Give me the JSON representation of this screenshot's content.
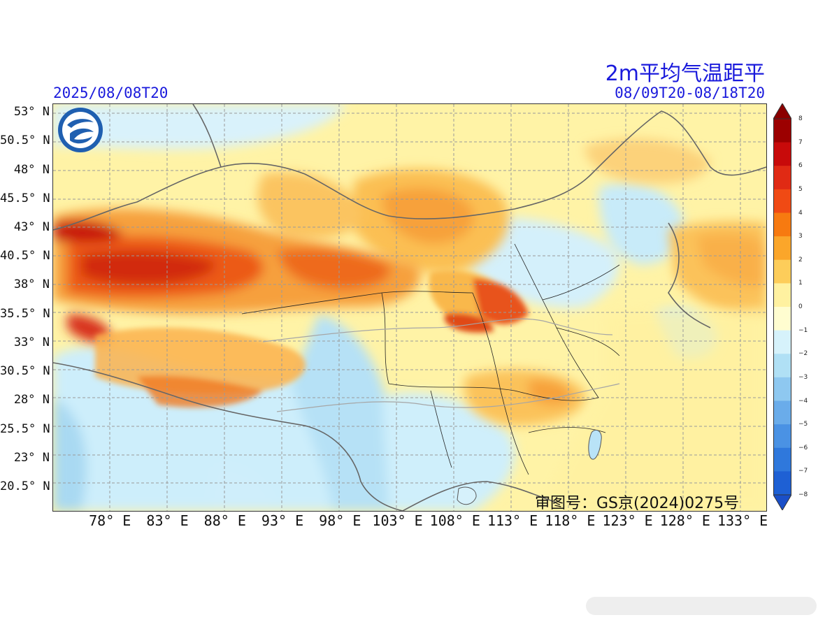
{
  "header": {
    "title": "2m平均气温距平",
    "init_time": "2025/08/08T20",
    "valid_range": "08/09T20-08/18T20"
  },
  "map": {
    "lat_labels": [
      "53° N",
      "50.5° N",
      "48° N",
      "45.5° N",
      "43° N",
      "40.5° N",
      "38° N",
      "35.5° N",
      "33° N",
      "30.5° N",
      "28° N",
      "25.5° N",
      "23° N",
      "20.5° N"
    ],
    "lat_values": [
      53,
      50.5,
      48,
      45.5,
      43,
      40.5,
      38,
      35.5,
      33,
      30.5,
      28,
      25.5,
      23,
      20.5
    ],
    "lon_labels": [
      "78° E",
      "83° E",
      "88° E",
      "93° E",
      "98° E",
      "103° E",
      "108° E",
      "113° E",
      "118° E",
      "123° E",
      "128° E",
      "133° E"
    ],
    "lon_values": [
      78,
      83,
      88,
      93,
      98,
      103,
      108,
      113,
      118,
      123,
      128,
      133
    ],
    "lon_range": [
      73,
      135
    ],
    "lat_range": [
      18.5,
      53.8
    ],
    "approval_number": "审图号：GS京(2024)0275号",
    "logo_icon": "weather-logo-icon"
  },
  "colorbar": {
    "ticks": [
      "8",
      "7",
      "6",
      "5",
      "4",
      "3",
      "2",
      "1",
      "0",
      "−1",
      "−2",
      "−3",
      "−4",
      "−5",
      "−6",
      "−7",
      "−8"
    ],
    "colors": [
      "#9c0000",
      "#c80a0a",
      "#e02a14",
      "#f04a14",
      "#f77a10",
      "#fba62a",
      "#fdcd5a",
      "#fff1a0",
      "#fffdd0",
      "#d6f2fb",
      "#b0e0f5",
      "#8ec8f0",
      "#6aacea",
      "#4a92e4",
      "#2f78dc",
      "#1e60d4"
    ],
    "over_color": "#8b0000",
    "under_color": "#1a4fc8"
  }
}
